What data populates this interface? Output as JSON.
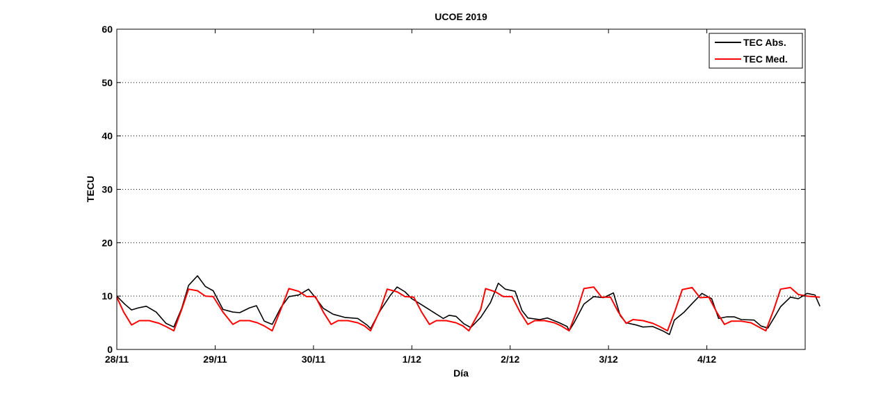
{
  "chart_data": {
    "type": "line",
    "title": "UCOE 2019",
    "xlabel": "Día",
    "ylabel": "TECU",
    "ylim": [
      0,
      60
    ],
    "yticks": [
      0,
      10,
      20,
      30,
      40,
      50,
      60
    ],
    "xlim": [
      0,
      7
    ],
    "xticks": [
      {
        "x": 0,
        "label": "28/11"
      },
      {
        "x": 1,
        "label": "29/11"
      },
      {
        "x": 2,
        "label": "30/11"
      },
      {
        "x": 3,
        "label": "1/12"
      },
      {
        "x": 4,
        "label": "2/12"
      },
      {
        "x": 5,
        "label": "3/12"
      },
      {
        "x": 6,
        "label": "4/12"
      }
    ],
    "grid": "horizontal dotted",
    "legend_position": "top-right",
    "series": [
      {
        "name": "TEC Abs.",
        "color": "#000000",
        "points": [
          [
            0.0,
            10.0
          ],
          [
            0.08,
            8.5
          ],
          [
            0.15,
            7.4
          ],
          [
            0.22,
            7.8
          ],
          [
            0.3,
            8.1
          ],
          [
            0.4,
            7.0
          ],
          [
            0.5,
            4.9
          ],
          [
            0.58,
            4.2
          ],
          [
            0.66,
            7.7
          ],
          [
            0.73,
            12.0
          ],
          [
            0.82,
            13.8
          ],
          [
            0.9,
            11.8
          ],
          [
            0.98,
            11.0
          ],
          [
            1.08,
            7.5
          ],
          [
            1.18,
            7.0
          ],
          [
            1.25,
            6.9
          ],
          [
            1.35,
            7.8
          ],
          [
            1.42,
            8.2
          ],
          [
            1.5,
            5.3
          ],
          [
            1.58,
            4.7
          ],
          [
            1.67,
            7.9
          ],
          [
            1.75,
            9.9
          ],
          [
            1.85,
            10.2
          ],
          [
            1.95,
            11.3
          ],
          [
            2.02,
            9.7
          ],
          [
            2.1,
            7.7
          ],
          [
            2.2,
            6.6
          ],
          [
            2.32,
            6.0
          ],
          [
            2.45,
            5.8
          ],
          [
            2.55,
            4.5
          ],
          [
            2.58,
            3.9
          ],
          [
            2.68,
            7.3
          ],
          [
            2.78,
            10.1
          ],
          [
            2.85,
            11.7
          ],
          [
            2.93,
            10.8
          ],
          [
            3.0,
            9.5
          ],
          [
            3.08,
            8.6
          ],
          [
            3.2,
            7.2
          ],
          [
            3.32,
            5.8
          ],
          [
            3.38,
            6.4
          ],
          [
            3.45,
            6.2
          ],
          [
            3.53,
            4.8
          ],
          [
            3.6,
            4.1
          ],
          [
            3.7,
            6.0
          ],
          [
            3.8,
            8.8
          ],
          [
            3.88,
            12.4
          ],
          [
            3.95,
            11.3
          ],
          [
            4.05,
            10.9
          ],
          [
            4.12,
            7.3
          ],
          [
            4.18,
            5.9
          ],
          [
            4.3,
            5.6
          ],
          [
            4.38,
            5.9
          ],
          [
            4.5,
            5.0
          ],
          [
            4.58,
            4.3
          ],
          [
            4.6,
            3.5
          ],
          [
            4.65,
            5.0
          ],
          [
            4.75,
            8.5
          ],
          [
            4.85,
            9.9
          ],
          [
            4.95,
            9.7
          ],
          [
            5.05,
            10.6
          ],
          [
            5.12,
            6.3
          ],
          [
            5.18,
            5.0
          ],
          [
            5.28,
            4.6
          ],
          [
            5.35,
            4.2
          ],
          [
            5.45,
            4.3
          ],
          [
            5.55,
            3.5
          ],
          [
            5.62,
            2.8
          ],
          [
            5.67,
            5.5
          ],
          [
            5.77,
            7.0
          ],
          [
            5.85,
            8.6
          ],
          [
            5.95,
            10.5
          ],
          [
            6.05,
            9.5
          ],
          [
            6.12,
            5.8
          ],
          [
            6.2,
            6.1
          ],
          [
            6.28,
            6.1
          ],
          [
            6.35,
            5.6
          ],
          [
            6.48,
            5.5
          ],
          [
            6.55,
            4.4
          ],
          [
            6.62,
            4.0
          ],
          [
            6.68,
            5.8
          ],
          [
            6.75,
            8.0
          ],
          [
            6.85,
            9.8
          ],
          [
            6.93,
            9.5
          ],
          [
            7.02,
            10.5
          ],
          [
            7.1,
            10.2
          ],
          [
            7.15,
            8.1
          ]
        ]
      },
      {
        "name": "TEC Med.",
        "color": "#ff0000",
        "points": [
          [
            0.0,
            9.8
          ],
          [
            0.07,
            7.0
          ],
          [
            0.15,
            4.6
          ],
          [
            0.23,
            5.4
          ],
          [
            0.33,
            5.4
          ],
          [
            0.43,
            4.9
          ],
          [
            0.5,
            4.3
          ],
          [
            0.58,
            3.5
          ],
          [
            0.66,
            7.5
          ],
          [
            0.73,
            11.3
          ],
          [
            0.82,
            11.0
          ],
          [
            0.9,
            10.0
          ],
          [
            0.98,
            9.9
          ],
          [
            1.08,
            7.0
          ],
          [
            1.18,
            4.7
          ],
          [
            1.25,
            5.4
          ],
          [
            1.35,
            5.4
          ],
          [
            1.43,
            5.0
          ],
          [
            1.5,
            4.4
          ],
          [
            1.58,
            3.5
          ],
          [
            1.67,
            7.6
          ],
          [
            1.75,
            11.4
          ],
          [
            1.85,
            10.9
          ],
          [
            1.93,
            9.9
          ],
          [
            2.02,
            9.9
          ],
          [
            2.1,
            7.0
          ],
          [
            2.18,
            4.7
          ],
          [
            2.25,
            5.4
          ],
          [
            2.35,
            5.4
          ],
          [
            2.45,
            5.0
          ],
          [
            2.52,
            4.4
          ],
          [
            2.58,
            3.5
          ],
          [
            2.68,
            7.5
          ],
          [
            2.75,
            11.3
          ],
          [
            2.85,
            10.8
          ],
          [
            2.93,
            9.9
          ],
          [
            3.02,
            9.8
          ],
          [
            3.1,
            7.0
          ],
          [
            3.18,
            4.7
          ],
          [
            3.25,
            5.4
          ],
          [
            3.35,
            5.4
          ],
          [
            3.45,
            5.0
          ],
          [
            3.52,
            4.4
          ],
          [
            3.58,
            3.5
          ],
          [
            3.7,
            7.5
          ],
          [
            3.75,
            11.4
          ],
          [
            3.85,
            10.8
          ],
          [
            3.93,
            9.9
          ],
          [
            4.02,
            9.9
          ],
          [
            4.1,
            7.0
          ],
          [
            4.18,
            4.7
          ],
          [
            4.25,
            5.4
          ],
          [
            4.35,
            5.4
          ],
          [
            4.45,
            5.0
          ],
          [
            4.52,
            4.4
          ],
          [
            4.6,
            3.5
          ],
          [
            4.68,
            7.3
          ],
          [
            4.75,
            11.4
          ],
          [
            4.85,
            11.7
          ],
          [
            4.93,
            9.8
          ],
          [
            5.02,
            9.8
          ],
          [
            5.1,
            7.0
          ],
          [
            5.18,
            4.9
          ],
          [
            5.25,
            5.6
          ],
          [
            5.35,
            5.4
          ],
          [
            5.45,
            4.9
          ],
          [
            5.52,
            4.3
          ],
          [
            5.6,
            3.5
          ],
          [
            5.68,
            7.4
          ],
          [
            5.75,
            11.2
          ],
          [
            5.85,
            11.6
          ],
          [
            5.93,
            9.7
          ],
          [
            6.02,
            9.8
          ],
          [
            6.1,
            7.0
          ],
          [
            6.18,
            4.7
          ],
          [
            6.25,
            5.3
          ],
          [
            6.35,
            5.3
          ],
          [
            6.45,
            5.0
          ],
          [
            6.52,
            4.3
          ],
          [
            6.6,
            3.5
          ],
          [
            6.68,
            7.4
          ],
          [
            6.75,
            11.3
          ],
          [
            6.85,
            11.6
          ],
          [
            6.93,
            10.3
          ],
          [
            7.02,
            10.0
          ],
          [
            7.15,
            9.8
          ]
        ]
      }
    ]
  }
}
